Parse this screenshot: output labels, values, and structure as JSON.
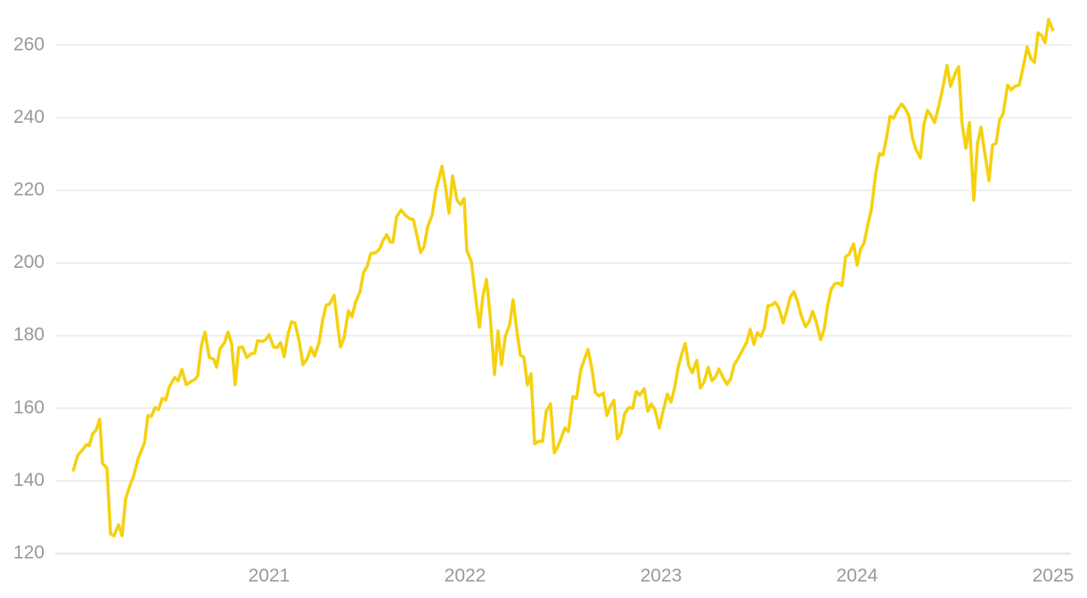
{
  "chart_data": {
    "type": "line",
    "color": "#f5d10f",
    "xlim": [
      2019.909,
      2025.091
    ],
    "ylim": [
      120,
      270
    ],
    "xticks": [
      2021,
      2022,
      2023,
      2024,
      2025
    ],
    "yticks": [
      120,
      140,
      160,
      180,
      200,
      220,
      240,
      260
    ],
    "grid": true,
    "x": [
      2020.0,
      2020.023,
      2020.05,
      2020.068,
      2020.082,
      2020.1,
      2020.118,
      2020.136,
      2020.15,
      2020.173,
      2020.191,
      2020.209,
      2020.232,
      2020.25,
      2020.268,
      2020.291,
      2020.309,
      2020.332,
      2020.364,
      2020.382,
      2020.4,
      2020.418,
      2020.436,
      2020.455,
      2020.473,
      2020.491,
      2020.518,
      2020.536,
      2020.555,
      2020.577,
      2020.6,
      2020.623,
      2020.636,
      2020.655,
      2020.673,
      2020.695,
      2020.718,
      2020.732,
      2020.75,
      2020.773,
      2020.791,
      2020.809,
      2020.827,
      2020.845,
      2020.864,
      2020.886,
      2020.909,
      2020.927,
      2020.941,
      2020.968,
      2020.986,
      2021.0,
      2021.023,
      2021.041,
      2021.059,
      2021.077,
      2021.095,
      2021.114,
      2021.132,
      2021.155,
      2021.173,
      2021.195,
      2021.214,
      2021.232,
      2021.255,
      2021.273,
      2021.291,
      2021.309,
      2021.332,
      2021.35,
      2021.364,
      2021.382,
      2021.405,
      2021.423,
      2021.441,
      2021.464,
      2021.482,
      2021.5,
      2021.518,
      2021.545,
      2021.564,
      2021.582,
      2021.6,
      2021.618,
      2021.632,
      2021.65,
      2021.673,
      2021.695,
      2021.718,
      2021.736,
      2021.755,
      2021.773,
      2021.791,
      2021.809,
      2021.832,
      2021.85,
      2021.868,
      2021.882,
      2021.9,
      2021.918,
      2021.936,
      2021.959,
      2021.977,
      2021.995,
      2022.009,
      2022.032,
      2022.05,
      2022.073,
      2022.091,
      2022.109,
      2022.127,
      2022.15,
      2022.168,
      2022.186,
      2022.205,
      2022.227,
      2022.245,
      2022.264,
      2022.282,
      2022.3,
      2022.318,
      2022.336,
      2022.355,
      2022.373,
      2022.395,
      2022.414,
      2022.436,
      2022.455,
      2022.473,
      2022.491,
      2022.509,
      2022.527,
      2022.55,
      2022.568,
      2022.591,
      2022.609,
      2022.627,
      2022.645,
      2022.664,
      2022.682,
      2022.705,
      2022.723,
      2022.741,
      2022.759,
      2022.777,
      2022.795,
      2022.814,
      2022.836,
      2022.855,
      2022.873,
      2022.891,
      2022.914,
      2022.932,
      2022.95,
      2022.968,
      2022.991,
      2023.009,
      2023.032,
      2023.05,
      2023.068,
      2023.086,
      2023.105,
      2023.123,
      2023.141,
      2023.159,
      2023.182,
      2023.2,
      2023.218,
      2023.241,
      2023.259,
      2023.277,
      2023.295,
      2023.318,
      2023.336,
      2023.355,
      2023.373,
      2023.391,
      2023.414,
      2023.436,
      2023.455,
      2023.473,
      2023.491,
      2023.509,
      2023.527,
      2023.545,
      2023.564,
      2023.582,
      2023.6,
      2023.623,
      2023.641,
      2023.659,
      2023.677,
      2023.695,
      2023.714,
      2023.736,
      2023.755,
      2023.773,
      2023.791,
      2023.814,
      2023.832,
      2023.85,
      2023.868,
      2023.886,
      2023.905,
      2023.923,
      2023.941,
      2023.959,
      2023.982,
      2024.0,
      2024.018,
      2024.036,
      2024.055,
      2024.073,
      2024.095,
      2024.114,
      2024.132,
      2024.15,
      2024.168,
      2024.186,
      2024.205,
      2024.227,
      2024.245,
      2024.264,
      2024.282,
      2024.3,
      2024.323,
      2024.341,
      2024.359,
      2024.377,
      2024.395,
      2024.418,
      2024.436,
      2024.459,
      2024.477,
      2024.5,
      2024.518,
      2024.536,
      2024.555,
      2024.573,
      2024.595,
      2024.614,
      2024.632,
      2024.65,
      2024.673,
      2024.691,
      2024.709,
      2024.727,
      2024.745,
      2024.768,
      2024.786,
      2024.805,
      2024.827,
      2024.845,
      2024.868,
      2024.886,
      2024.905,
      2024.923,
      2024.941,
      2024.959,
      2024.977,
      2025.0
    ],
    "values": [
      142.6,
      147,
      148.7,
      150,
      149.7,
      153,
      154,
      157,
      144.8,
      143.5,
      125.4,
      124.9,
      127.9,
      124.9,
      135,
      138.9,
      141.3,
      146.2,
      150.4,
      158,
      157.8,
      160.2,
      159.7,
      162.7,
      162.3,
      165.9,
      168.5,
      167.6,
      170.7,
      166.5,
      167.3,
      168,
      169,
      177.4,
      181,
      174,
      173.5,
      171.3,
      176.4,
      178.1,
      181,
      177.6,
      166.5,
      176.7,
      176.9,
      174,
      175,
      175.2,
      178.6,
      178.4,
      179.1,
      180.3,
      176.9,
      176.7,
      178.1,
      174.2,
      180.1,
      183.8,
      183.5,
      178.1,
      172,
      173.7,
      176.7,
      174.4,
      178.1,
      184.2,
      188.4,
      188.7,
      191.1,
      182.8,
      176.9,
      179.3,
      186.9,
      185.2,
      189.2,
      192.1,
      197.5,
      199,
      202.6,
      202.9,
      203.9,
      206.3,
      207.8,
      205.8,
      205.8,
      212.7,
      214.6,
      213.2,
      212.2,
      212,
      207.5,
      202.9,
      204.6,
      210,
      213.2,
      219.8,
      223.5,
      226.7,
      221,
      213.7,
      224,
      217.3,
      216.1,
      217.8,
      203.4,
      200.4,
      192.1,
      182.3,
      190.9,
      195.5,
      186.2,
      169.3,
      181.3,
      172,
      179.8,
      183,
      189.9,
      181.3,
      174.7,
      174,
      166.4,
      169.5,
      150.2,
      150.9,
      150.9,
      159.2,
      161.2,
      147.7,
      149.4,
      151.9,
      154.6,
      153.6,
      163.2,
      162.7,
      170.8,
      173.5,
      176.2,
      171.5,
      164.4,
      163.4,
      164.2,
      158,
      160.5,
      162.2,
      151.6,
      153.1,
      158.5,
      160.2,
      160,
      164.6,
      163.6,
      165.4,
      159.2,
      161.2,
      159.7,
      154.6,
      159,
      163.9,
      161.7,
      165.4,
      171,
      174.9,
      177.9,
      171.7,
      169.8,
      173.2,
      165.6,
      167.1,
      171.3,
      167.6,
      168.6,
      170.8,
      168.3,
      166.6,
      168.1,
      172,
      173.5,
      175.9,
      178.1,
      181.8,
      177.6,
      180.8,
      179.8,
      182,
      188.2,
      188.4,
      189.2,
      187.7,
      183.5,
      186.9,
      190.6,
      192.1,
      189.6,
      185.7,
      182.5,
      183.8,
      186.7,
      183.8,
      178.9,
      181.8,
      188.4,
      192.8,
      194.3,
      194.5,
      193.8,
      201.7,
      202.4,
      205.3,
      199.4,
      203.9,
      205.6,
      210.7,
      214.9,
      224.7,
      230.1,
      229.8,
      234.5,
      240.4,
      239.9,
      242.1,
      243.8,
      242.6,
      240.6,
      234.5,
      231.3,
      228.9,
      238.2,
      242.1,
      240.6,
      238.7,
      243.6,
      248,
      254.4,
      248.7,
      252.2,
      254.1,
      238.2,
      231.6,
      238.7,
      217.3,
      232.8,
      237.4,
      230.8,
      222.7,
      232.5,
      233,
      239.4,
      241.1,
      249,
      247.7,
      248.7,
      249,
      253.4,
      259.5,
      256.3,
      255.3,
      263.4,
      262.7,
      260.7,
      267.1,
      263.9
    ]
  }
}
